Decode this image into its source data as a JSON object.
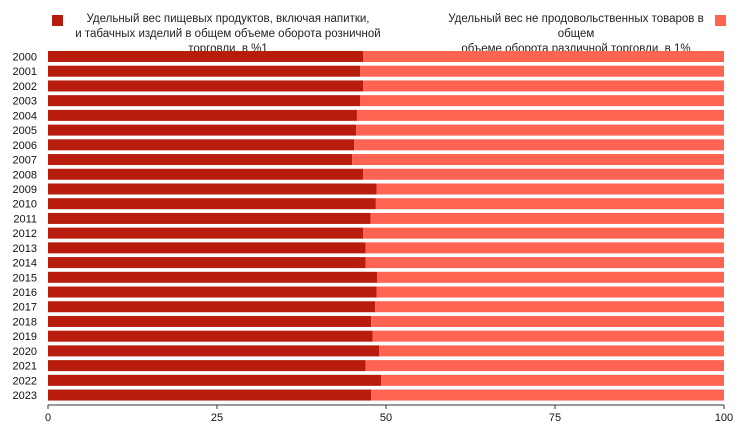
{
  "chart_data": {
    "type": "bar",
    "orientation": "horizontal",
    "stacked": true,
    "categories": [
      "2000",
      "2001",
      "2002",
      "2003",
      "2004",
      "2005",
      "2006",
      "2007",
      "2008",
      "2009",
      "2010",
      "2011",
      "2012",
      "2013",
      "2014",
      "2015",
      "2016",
      "2017",
      "2018",
      "2019",
      "2020",
      "2021",
      "2022",
      "2023"
    ],
    "series": [
      {
        "name": "Удельный вес пищевых продуктов, включая напитки, и табачных изделий в общем объеме оборота розничной торговли, в %1",
        "color": "#b71c0c",
        "values": [
          46.6,
          46.2,
          46.6,
          46.2,
          45.7,
          45.6,
          45.3,
          45.0,
          46.6,
          48.6,
          48.5,
          47.7,
          46.6,
          47.0,
          47.0,
          48.7,
          48.6,
          48.4,
          47.8,
          48.0,
          49.0,
          47.0,
          49.3,
          47.8
        ]
      },
      {
        "name": "Удельный вес не продовольственных товаров в общем объеме оборота различной торговли, в 1%",
        "color": "#ff6352",
        "values": [
          53.4,
          53.8,
          53.4,
          53.8,
          54.3,
          54.4,
          54.7,
          55.0,
          53.4,
          51.4,
          51.5,
          52.3,
          53.4,
          53.0,
          53.0,
          51.3,
          51.4,
          51.6,
          52.2,
          52.0,
          51.0,
          53.0,
          50.7,
          52.2
        ]
      }
    ],
    "xlim": [
      0,
      100
    ],
    "xticks": [
      0,
      25,
      50,
      75,
      100
    ],
    "legend_position": "top",
    "grid": false
  },
  "legend": {
    "items": [
      {
        "line1": "Удельный вес пищевых продуктов, включая напитки,",
        "line2": "и табачных изделий в общем объеме оборота розничной торговли, в %1"
      },
      {
        "line1": "Удельный вес не продовольственных товаров в общем",
        "line2": "объеме оборота различной торговли, в 1%"
      }
    ]
  }
}
